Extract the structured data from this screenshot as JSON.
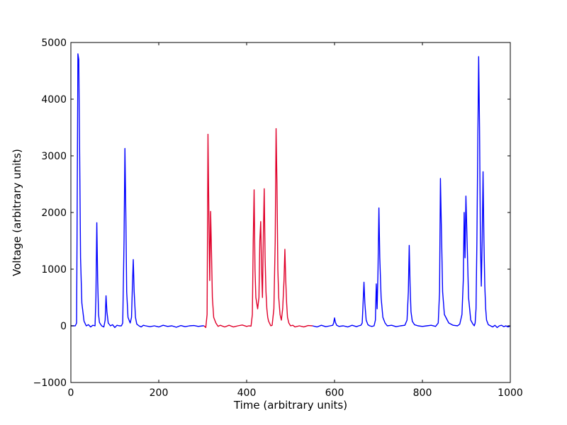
{
  "chart_data": {
    "type": "line",
    "xlabel": "Time (arbitrary units)",
    "ylabel": "Voltage (arbitrary units)",
    "xlim": [
      0,
      1000
    ],
    "ylim": [
      -1000,
      5000
    ],
    "xticks": [
      0,
      200,
      400,
      600,
      800,
      1000
    ],
    "yticks": [
      -1000,
      0,
      1000,
      2000,
      3000,
      4000,
      5000
    ],
    "xtick_labels": [
      "0",
      "200",
      "400",
      "600",
      "800",
      "1000"
    ],
    "ytick_labels": [
      "−1000",
      "0",
      "1000",
      "2000",
      "3000",
      "4000",
      "5000"
    ],
    "grid": false,
    "series": [
      {
        "color": "#0000ff",
        "x": [
          0,
          10,
          13,
          14,
          16,
          18,
          20,
          22,
          25,
          30,
          35,
          40,
          45,
          50,
          55,
          57,
          59,
          61,
          63,
          65,
          70,
          75,
          78,
          80,
          82,
          85,
          90,
          95,
          100,
          105,
          110,
          115,
          118,
          121,
          123,
          125,
          127,
          130,
          135,
          138,
          140,
          142,
          144,
          147,
          150,
          155,
          160,
          165,
          170,
          180,
          190,
          200,
          210,
          220,
          230,
          240,
          250,
          260,
          270,
          280,
          290,
          300,
          303
        ],
        "y": [
          0,
          0,
          50,
          1500,
          4800,
          4700,
          3000,
          1200,
          400,
          80,
          0,
          20,
          -20,
          10,
          0,
          500,
          1820,
          800,
          200,
          60,
          0,
          -20,
          100,
          530,
          250,
          50,
          0,
          20,
          -30,
          10,
          0,
          0,
          50,
          1500,
          3130,
          2000,
          600,
          150,
          50,
          150,
          700,
          1170,
          600,
          150,
          30,
          0,
          -20,
          10,
          0,
          -15,
          0,
          -20,
          10,
          -10,
          0,
          -25,
          5,
          -15,
          0,
          5,
          -10,
          0,
          0
        ]
      },
      {
        "color": "#e0002a",
        "x": [
          303,
          307,
          310,
          312,
          314,
          316,
          318,
          320,
          322,
          325,
          330,
          335,
          340,
          350,
          360,
          370,
          380,
          390,
          400,
          405,
          410,
          413,
          415,
          417,
          419,
          421,
          423,
          425,
          428,
          430,
          432,
          434,
          436,
          438,
          440,
          442,
          444,
          446,
          448,
          450,
          455,
          458,
          462,
          465,
          467,
          469,
          471,
          473,
          476,
          479,
          482,
          485,
          487,
          489,
          491,
          493,
          496,
          500,
          505,
          510,
          520,
          530,
          540,
          550
        ],
        "y": [
          0,
          -30,
          200,
          3380,
          2000,
          800,
          2020,
          1300,
          500,
          150,
          50,
          -10,
          10,
          -20,
          10,
          -20,
          0,
          15,
          -10,
          0,
          -5,
          200,
          1500,
          2400,
          1000,
          500,
          400,
          300,
          500,
          1500,
          1840,
          1000,
          500,
          1600,
          2420,
          1200,
          600,
          300,
          150,
          80,
          0,
          10,
          300,
          1500,
          3480,
          2500,
          1000,
          500,
          200,
          100,
          300,
          800,
          1350,
          800,
          400,
          150,
          50,
          0,
          10,
          -20,
          0,
          -20,
          5,
          0
        ]
      },
      {
        "color": "#0000ff",
        "x": [
          550,
          560,
          570,
          580,
          590,
          596,
          598,
          600,
          602,
          605,
          610,
          620,
          630,
          640,
          650,
          655,
          660,
          663,
          665,
          667,
          669,
          672,
          676,
          680,
          685,
          690,
          693,
          695,
          697,
          699,
          701,
          703,
          706,
          710,
          715,
          720,
          730,
          740,
          750,
          760,
          765,
          768,
          770,
          772,
          774,
          777,
          782,
          790,
          800,
          810,
          820,
          830,
          836,
          839,
          841,
          843,
          846,
          850,
          860,
          870,
          880,
          885,
          890,
          893,
          895,
          897,
          899,
          902,
          905,
          910,
          915,
          918,
          920,
          922,
          924,
          926,
          928,
          930,
          932,
          934,
          936,
          938,
          940,
          942,
          944,
          946,
          950,
          955,
          960,
          965,
          970,
          975,
          980,
          985,
          990,
          995,
          1000
        ],
        "y": [
          0,
          -20,
          10,
          -15,
          0,
          10,
          50,
          140,
          60,
          10,
          -10,
          0,
          -20,
          10,
          -15,
          0,
          10,
          50,
          400,
          770,
          400,
          100,
          20,
          0,
          -10,
          0,
          100,
          740,
          300,
          1000,
          2080,
          1200,
          500,
          150,
          50,
          0,
          10,
          -15,
          0,
          10,
          100,
          600,
          1420,
          700,
          250,
          80,
          20,
          0,
          -10,
          0,
          10,
          -10,
          50,
          600,
          2600,
          1800,
          600,
          200,
          50,
          10,
          0,
          30,
          200,
          800,
          2000,
          1200,
          2290,
          1400,
          500,
          100,
          30,
          0,
          50,
          300,
          1500,
          3200,
          4750,
          3500,
          1500,
          700,
          1500,
          2720,
          1500,
          700,
          300,
          100,
          20,
          0,
          -20,
          10,
          -30,
          0,
          10,
          -15,
          0,
          -20,
          0
        ]
      }
    ]
  }
}
